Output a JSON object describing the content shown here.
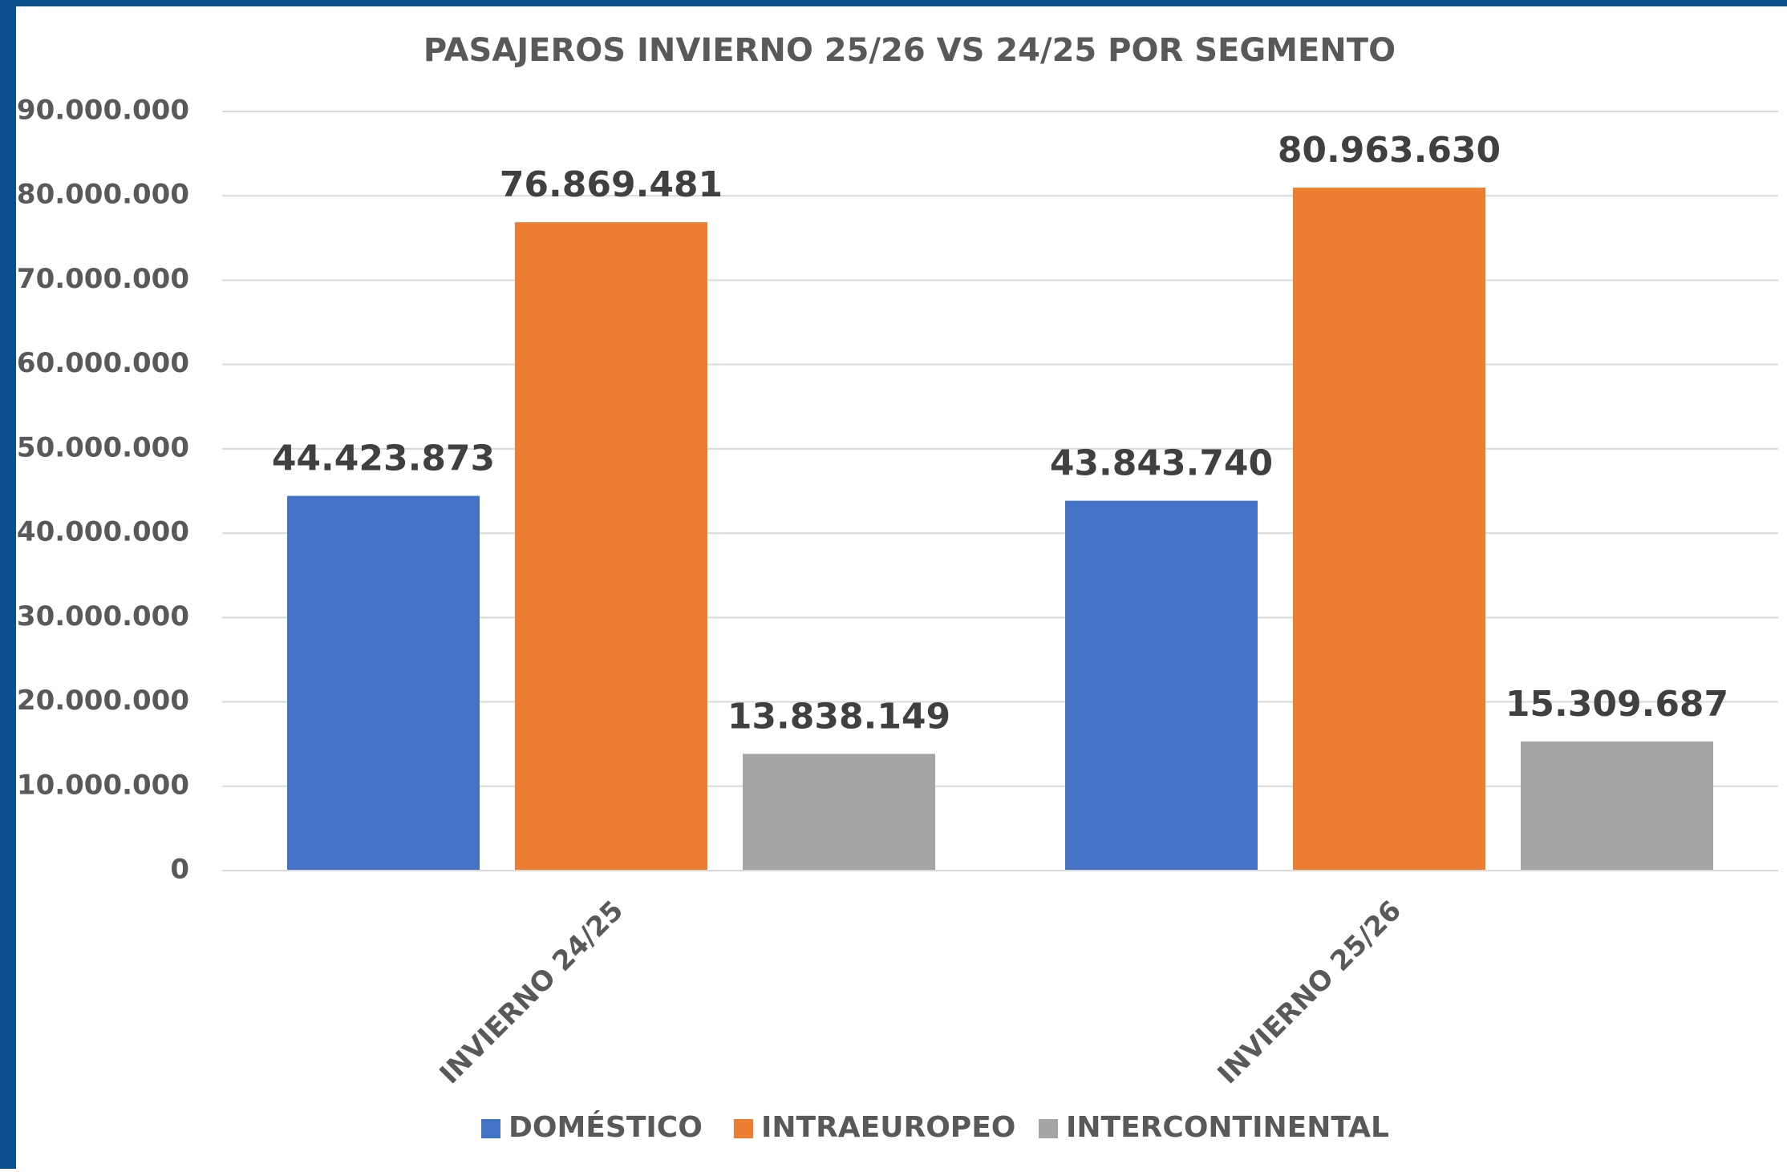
{
  "chart_data": {
    "type": "bar",
    "title": "PASAJEROS INVIERNO 25/26 VS 24/25 POR SEGMENTO",
    "categories": [
      "INVIERNO 24/25",
      "INVIERNO 25/26"
    ],
    "series": [
      {
        "name": "DOMÉSTICO",
        "color": "#4472c4",
        "values": [
          44423873,
          43843740
        ],
        "value_labels": [
          "44.423.873",
          "43.843.740"
        ]
      },
      {
        "name": "INTRAEUROPEO",
        "color": "#ed7d31",
        "values": [
          76869481,
          80963630
        ],
        "value_labels": [
          "76.869.481",
          "80.963.630"
        ]
      },
      {
        "name": "INTERCONTINENTAL",
        "color": "#a5a5a5",
        "values": [
          13838149,
          15309687
        ],
        "value_labels": [
          "13.838.149",
          "15.309.687"
        ]
      }
    ],
    "ylim": [
      0,
      90000000
    ],
    "yticks": [
      0,
      {
        "value": 10000000,
        "label": "10.000.000"
      },
      {
        "value": 20000000,
        "label": "20.000.000"
      },
      {
        "value": 30000000,
        "label": "30.000.000"
      },
      {
        "value": 40000000,
        "label": "40.000.000"
      },
      {
        "value": 50000000,
        "label": "50.000.000"
      },
      {
        "value": 60000000,
        "label": "60.000.000"
      },
      {
        "value": 70000000,
        "label": "70.000.000"
      },
      {
        "value": 80000000,
        "label": "80.000.000"
      },
      {
        "value": 90000000,
        "label": "90.000.000"
      }
    ],
    "grid": true,
    "legend": "bottom"
  }
}
